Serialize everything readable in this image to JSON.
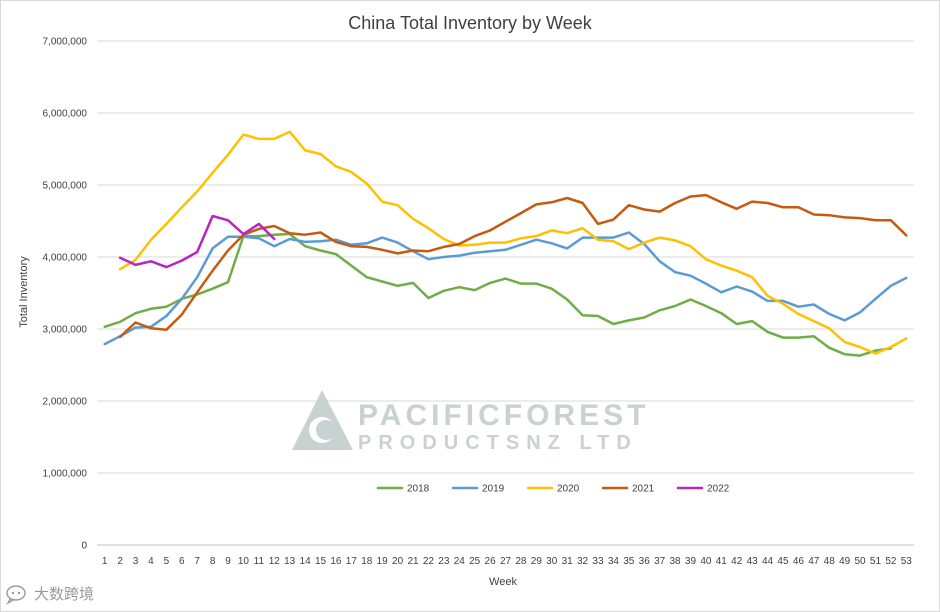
{
  "chart_data": {
    "type": "line",
    "title": "China Total Inventory by Week",
    "xlabel": "Week",
    "ylabel": "Total Inventory",
    "x": [
      1,
      2,
      3,
      4,
      5,
      6,
      7,
      8,
      9,
      10,
      11,
      12,
      13,
      14,
      15,
      16,
      17,
      18,
      19,
      20,
      21,
      22,
      23,
      24,
      25,
      26,
      27,
      28,
      29,
      30,
      31,
      32,
      33,
      34,
      35,
      36,
      37,
      38,
      39,
      40,
      41,
      42,
      43,
      44,
      45,
      46,
      47,
      48,
      49,
      50,
      51,
      52,
      53
    ],
    "ylim": [
      0,
      7000000
    ],
    "yticks": [
      0,
      1000000,
      2000000,
      3000000,
      4000000,
      5000000,
      6000000,
      7000000
    ],
    "ytick_labels": [
      "0",
      "1,000,000",
      "2,000,000",
      "3,000,000",
      "4,000,000",
      "5,000,000",
      "6,000,000",
      "7,000,000"
    ],
    "grid": "horizontal",
    "legend_position": "bottom-center",
    "series": [
      {
        "name": "2018",
        "color": "#70ad47",
        "values": [
          3030000,
          3100000,
          3220000,
          3280000,
          3310000,
          3420000,
          3480000,
          3560000,
          3650000,
          4290000,
          4290000,
          4310000,
          4320000,
          4150000,
          4090000,
          4040000,
          3880000,
          3720000,
          3660000,
          3600000,
          3640000,
          3430000,
          3530000,
          3580000,
          3540000,
          3640000,
          3700000,
          3630000,
          3630000,
          3560000,
          3410000,
          3190000,
          3180000,
          3070000,
          3120000,
          3160000,
          3260000,
          3320000,
          3410000,
          3320000,
          3220000,
          3070000,
          3110000,
          2960000,
          2880000,
          2880000,
          2900000,
          2740000,
          2650000,
          2630000,
          2700000,
          2730000,
          null
        ]
      },
      {
        "name": "2019",
        "color": "#5b9bd5",
        "values": [
          2790000,
          2900000,
          3020000,
          3030000,
          3180000,
          3420000,
          3720000,
          4120000,
          4280000,
          4280000,
          4260000,
          4150000,
          4250000,
          4210000,
          4220000,
          4240000,
          4170000,
          4190000,
          4270000,
          4200000,
          4080000,
          3970000,
          4000000,
          4020000,
          4060000,
          4080000,
          4100000,
          4170000,
          4240000,
          4190000,
          4120000,
          4270000,
          4270000,
          4270000,
          4340000,
          4180000,
          3940000,
          3790000,
          3740000,
          3630000,
          3510000,
          3590000,
          3520000,
          3390000,
          3390000,
          3310000,
          3340000,
          3210000,
          3120000,
          3230000,
          3420000,
          3600000,
          3710000
        ]
      },
      {
        "name": "2020",
        "color": "#ffc000",
        "values": [
          null,
          3830000,
          3960000,
          4240000,
          4460000,
          4690000,
          4910000,
          5170000,
          5420000,
          5700000,
          5640000,
          5640000,
          5740000,
          5480000,
          5430000,
          5260000,
          5180000,
          5020000,
          4770000,
          4720000,
          4530000,
          4400000,
          4250000,
          4160000,
          4170000,
          4200000,
          4200000,
          4260000,
          4290000,
          4370000,
          4330000,
          4400000,
          4240000,
          4220000,
          4110000,
          4200000,
          4270000,
          4230000,
          4150000,
          3970000,
          3880000,
          3810000,
          3720000,
          3460000,
          3350000,
          3210000,
          3110000,
          3010000,
          2820000,
          2750000,
          2660000,
          2750000,
          2870000
        ]
      },
      {
        "name": "2021",
        "color": "#c55a11",
        "values": [
          null,
          2890000,
          3090000,
          3010000,
          2990000,
          3200000,
          3510000,
          3810000,
          4090000,
          4310000,
          4390000,
          4430000,
          4330000,
          4310000,
          4340000,
          4210000,
          4150000,
          4140000,
          4100000,
          4050000,
          4090000,
          4080000,
          4140000,
          4180000,
          4290000,
          4370000,
          4490000,
          4610000,
          4730000,
          4760000,
          4820000,
          4750000,
          4460000,
          4520000,
          4720000,
          4660000,
          4630000,
          4750000,
          4840000,
          4860000,
          4760000,
          4670000,
          4770000,
          4750000,
          4690000,
          4690000,
          4590000,
          4580000,
          4550000,
          4540000,
          4510000,
          4510000,
          4300000
        ]
      },
      {
        "name": "2022",
        "color": "#b925c2",
        "values": [
          null,
          3990000,
          3890000,
          3940000,
          3860000,
          3950000,
          4070000,
          4570000,
          4510000,
          4320000,
          4460000,
          4250000,
          null,
          null,
          null,
          null,
          null,
          null,
          null,
          null,
          null,
          null,
          null,
          null,
          null,
          null,
          null,
          null,
          null,
          null,
          null,
          null,
          null,
          null,
          null,
          null,
          null,
          null,
          null,
          null,
          null,
          null,
          null,
          null,
          null,
          null,
          null,
          null,
          null,
          null,
          null,
          null,
          null
        ]
      }
    ]
  },
  "watermark": {
    "line1": "PACIFICFOREST",
    "line2": "PRODUCTSNZ LTD",
    "color": "#c8d2d0"
  },
  "corner_logo": {
    "text": "大数跨境",
    "icon": "chat-bubble-icon"
  }
}
